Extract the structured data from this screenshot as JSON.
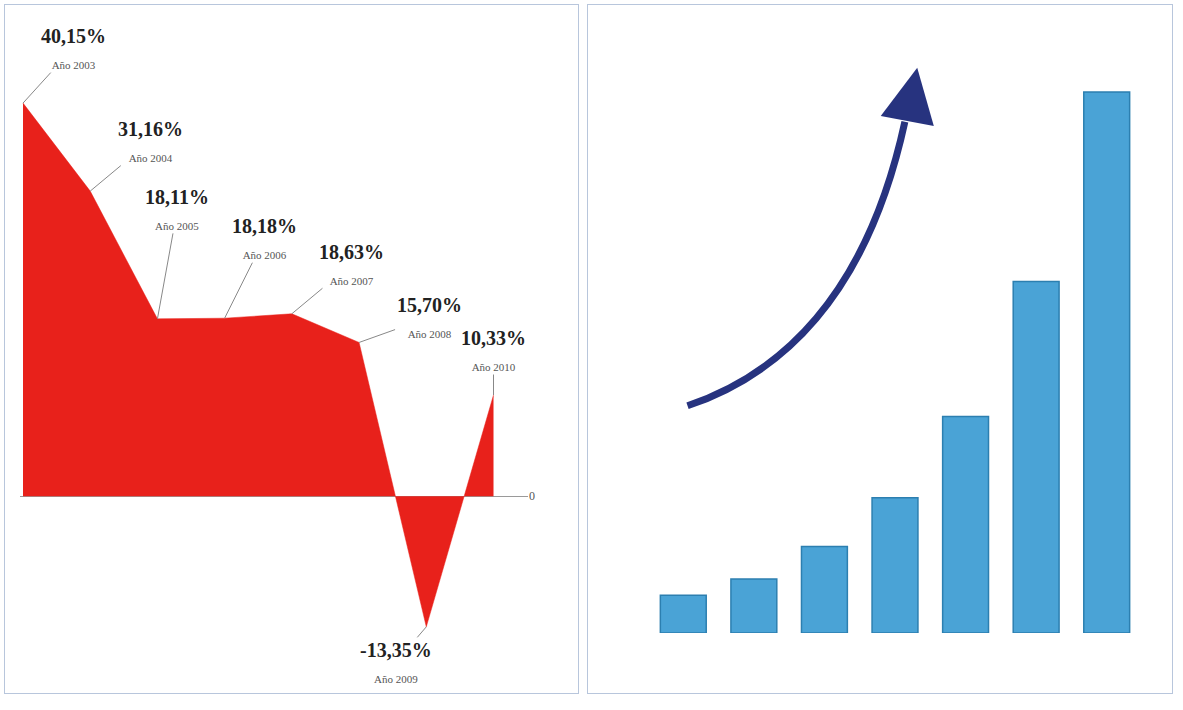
{
  "chart_data": [
    {
      "type": "area",
      "categories": [
        "Año 2003",
        "Año 2004",
        "Año 2005",
        "Año 2006",
        "Año 2007",
        "Año 2008",
        "Año 2009",
        "Año 2010"
      ],
      "values": [
        40.15,
        31.16,
        18.11,
        18.18,
        18.63,
        15.7,
        -13.35,
        10.33
      ],
      "value_labels": [
        "40,15%",
        "31,16%",
        "18,11%",
        "18,18%",
        "18,63%",
        "15,70%",
        "-13,35%",
        "10,33%"
      ],
      "data_labels": true,
      "color": "#e8211b",
      "ylim": [
        -15,
        42
      ],
      "yticks": [
        0
      ],
      "grid": false,
      "tick_labels": "y"
    },
    {
      "type": "bar",
      "categories": [
        null,
        null,
        null,
        null,
        null,
        null,
        null
      ],
      "values": [
        7,
        10,
        16,
        25,
        40,
        65,
        100
      ],
      "color": "#4aa3d6",
      "ylim": [
        0,
        105
      ],
      "grid": false,
      "tick_labels": false
    }
  ]
}
